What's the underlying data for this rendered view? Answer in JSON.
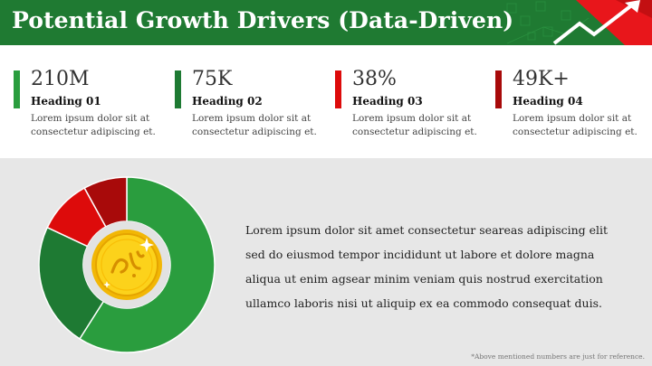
{
  "header": {
    "title": "Potential Growth Drivers (Data-Driven)",
    "bg_color": "#1f7a32",
    "accent_color": "#e8161b"
  },
  "stats": [
    {
      "value": "210M",
      "heading": "Heading 01",
      "description": "Lorem ipsum dolor sit at consectetur adipiscing et.",
      "color": "#2a9d3e"
    },
    {
      "value": "75K",
      "heading": "Heading 02",
      "description": "Lorem ipsum dolor sit at consectetur adipiscing et.",
      "color": "#1e7a33"
    },
    {
      "value": "38%",
      "heading": "Heading 03",
      "description": "Lorem ipsum dolor sit at consectetur adipiscing et.",
      "color": "#dd0b0b"
    },
    {
      "value": "49K+",
      "heading": "Heading 04",
      "description": "Lorem ipsum dolor sit at consectetur adipiscing et.",
      "color": "#a80a0a"
    }
  ],
  "chart_data": {
    "type": "pie",
    "subtype": "donut",
    "values": [
      59,
      23,
      10,
      8
    ],
    "colors": [
      "#2a9d3e",
      "#1e7a33",
      "#dd0b0b",
      "#a80a0a"
    ],
    "center_icon": "riyal-coin-icon"
  },
  "body": {
    "paragraph": "Lorem ipsum dolor sit amet consectetur seareas adipiscing elit sed do eiusmod tempor incididunt ut labore et dolore magna aliqua ut enim agsear minim veniam quis nostrud exercitation ullamco laboris nisi ut aliquip ex ea commodo consequat duis.",
    "footnote": "*Above mentioned numbers are just for reference."
  },
  "icons": {
    "header_arrow": "trend-up-arrow-icon"
  }
}
